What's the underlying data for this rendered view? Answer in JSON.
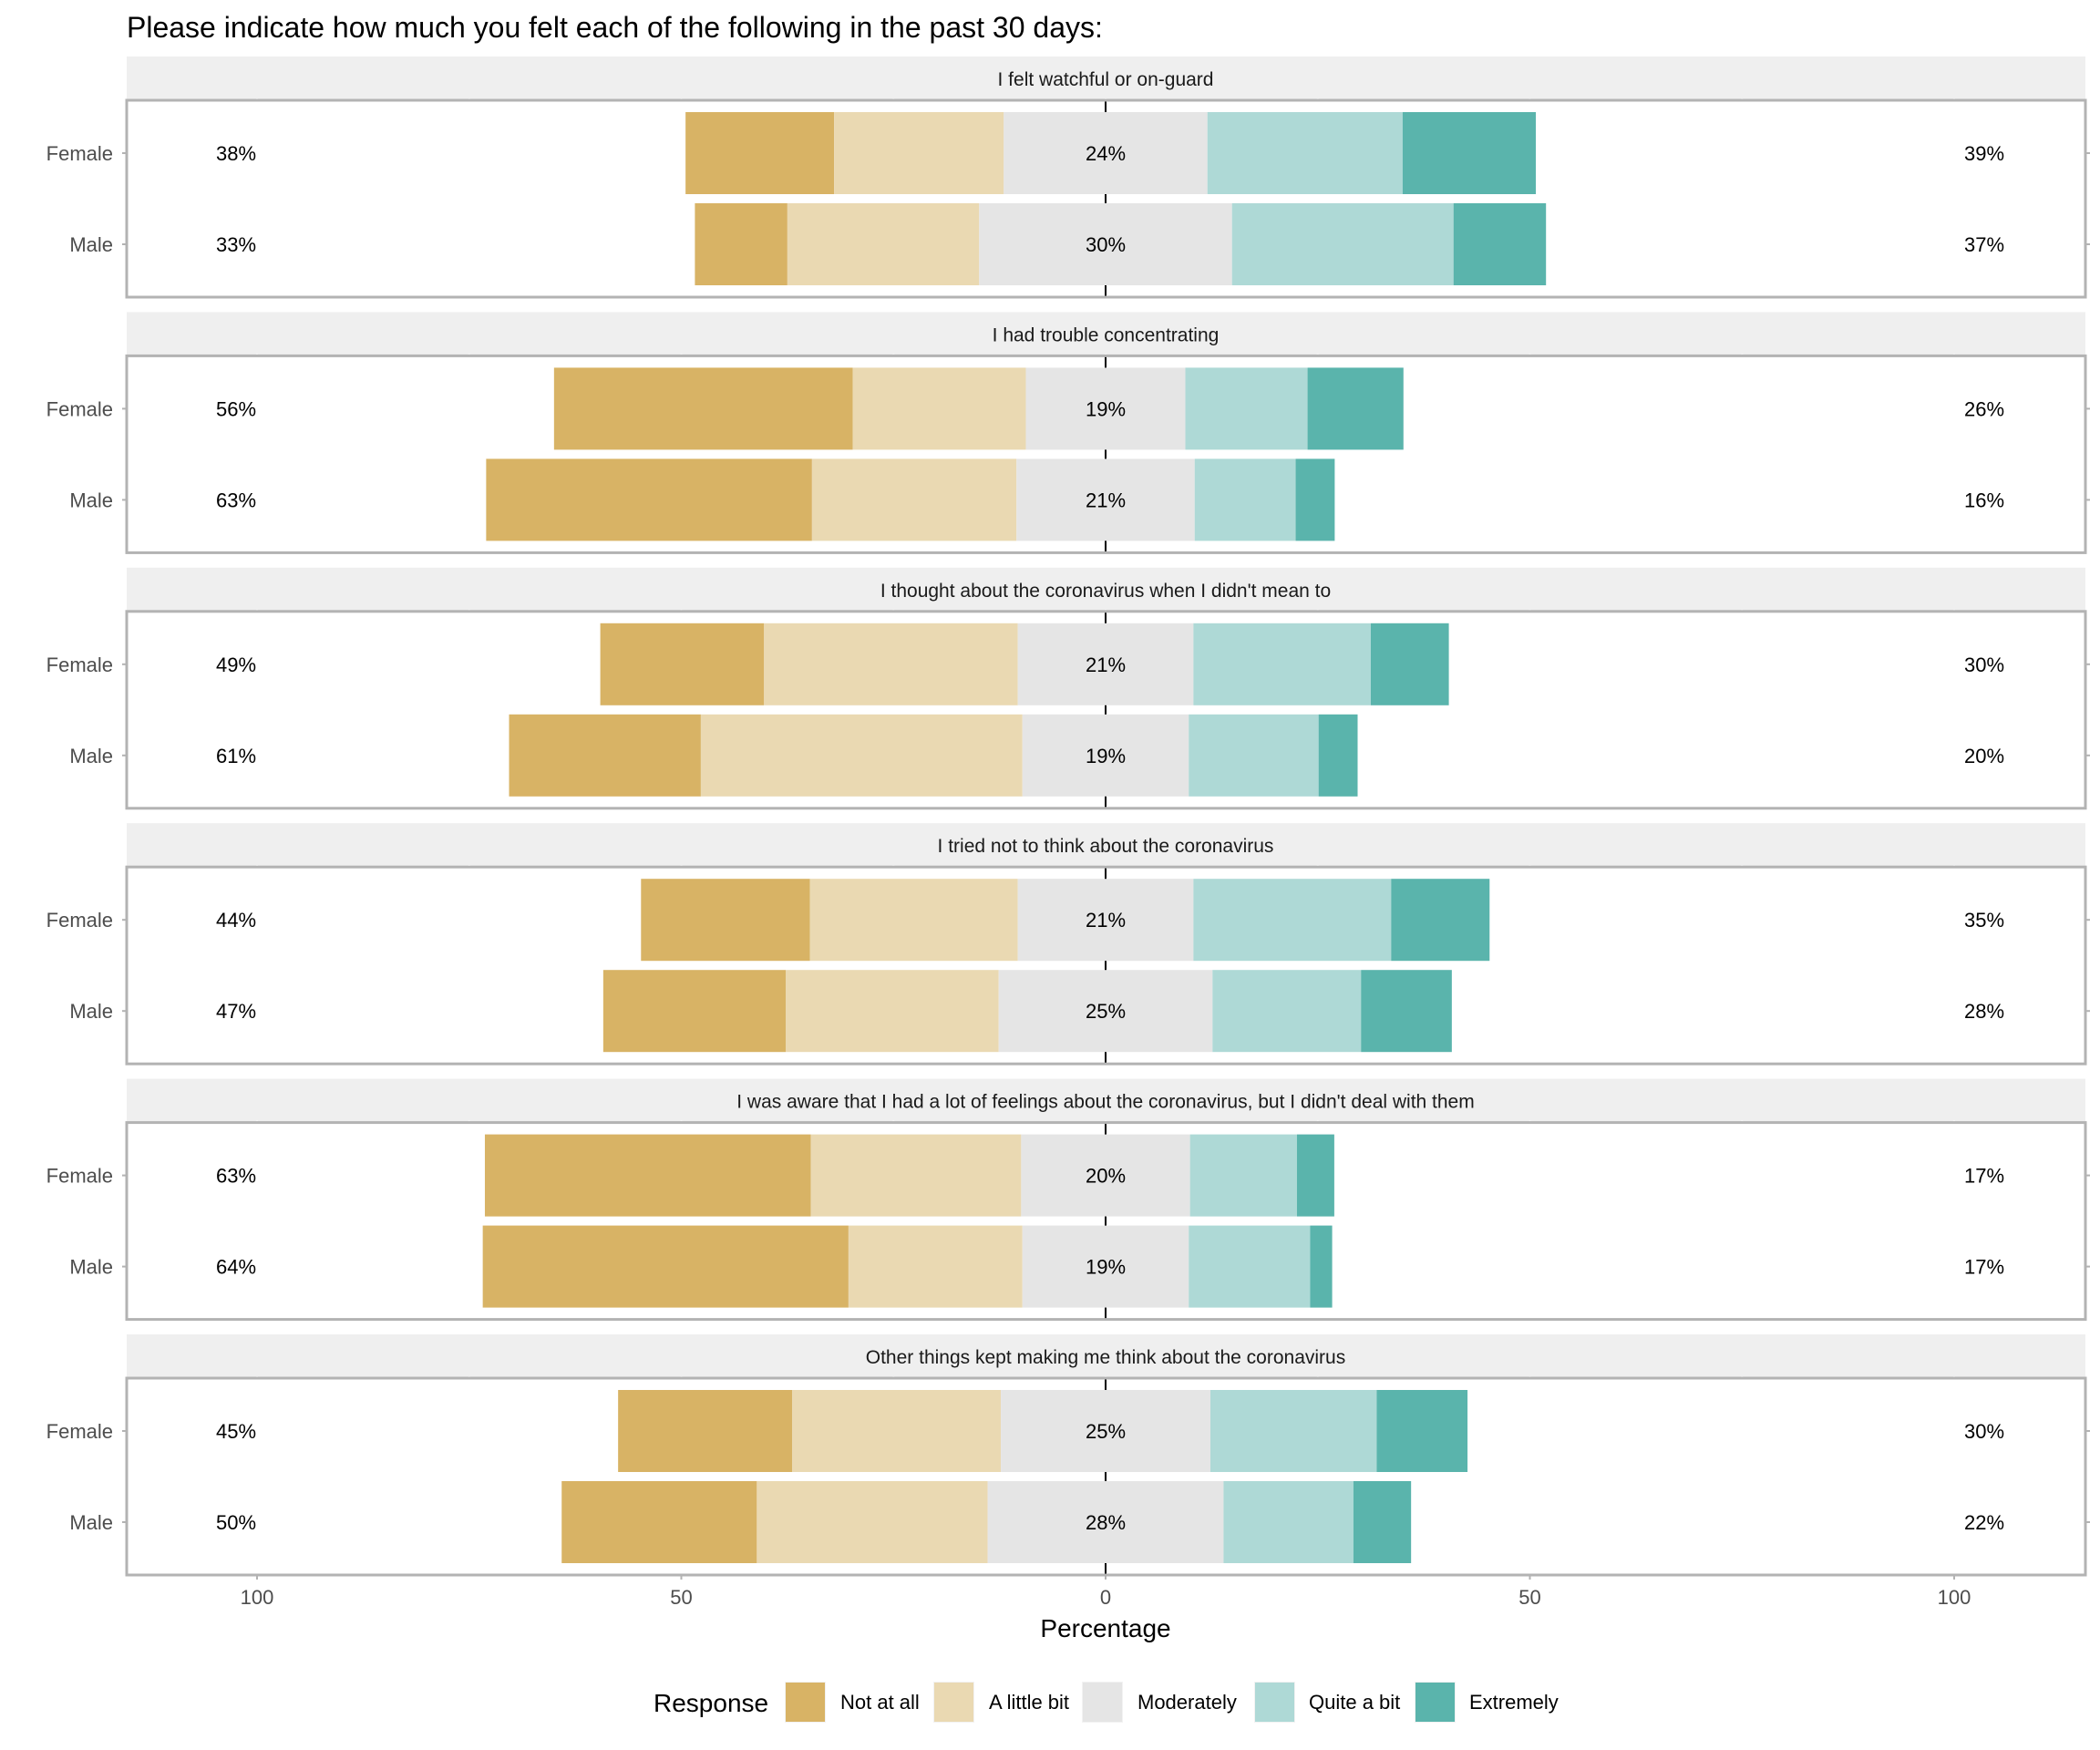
{
  "chart_data": {
    "type": "bar",
    "subtype": "diverging-stacked-horizontal",
    "title": "Please indicate how much you felt each of the following in the past 30 days:",
    "xlabel": "Percentage",
    "ylabel": "",
    "xlim": [
      -100,
      100
    ],
    "x_ticks": [
      -100,
      -50,
      0,
      50,
      100
    ],
    "x_tick_labels": [
      "100",
      "50",
      "0",
      "50",
      "100"
    ],
    "grid": false,
    "legend": {
      "title": "Response",
      "position": "bottom",
      "entries": [
        "Not at all",
        "A little bit",
        "Moderately",
        "Quite a bit",
        "Extremely"
      ]
    },
    "colors": {
      "Not at all": "#D8B365",
      "A little bit": "#EAD9B2",
      "Moderately": "#E5E5E5",
      "Quite a bit": "#AED9D6",
      "Extremely": "#5AB4AC"
    },
    "categories": [
      "Female",
      "Male"
    ],
    "panels": [
      {
        "label": "I felt watchful or on-guard",
        "rows": [
          {
            "group": "Female",
            "values": [
              17.5,
              20.0,
              24.0,
              23.0,
              15.7
            ],
            "low_label": "38%",
            "neutral_label": "24%",
            "high_label": "39%"
          },
          {
            "group": "Male",
            "values": [
              10.9,
              22.6,
              29.8,
              26.1,
              10.9
            ],
            "low_label": "33%",
            "neutral_label": "30%",
            "high_label": "37%"
          }
        ]
      },
      {
        "label": "I had trouble concentrating",
        "rows": [
          {
            "group": "Female",
            "values": [
              35.2,
              20.4,
              18.8,
              14.4,
              11.3
            ],
            "low_label": "56%",
            "neutral_label": "19%",
            "high_label": "26%"
          },
          {
            "group": "Male",
            "values": [
              38.4,
              24.1,
              21.0,
              11.9,
              4.6
            ],
            "low_label": "63%",
            "neutral_label": "21%",
            "high_label": "16%"
          }
        ]
      },
      {
        "label": "I thought about the coronavirus when I didn't mean to",
        "rows": [
          {
            "group": "Female",
            "values": [
              19.3,
              29.9,
              20.7,
              20.9,
              9.2
            ],
            "low_label": "49%",
            "neutral_label": "21%",
            "high_label": "30%"
          },
          {
            "group": "Male",
            "values": [
              22.6,
              37.9,
              19.6,
              15.3,
              4.6
            ],
            "low_label": "61%",
            "neutral_label": "19%",
            "high_label": "20%"
          }
        ]
      },
      {
        "label": "I tried not to think about the coronavirus",
        "rows": [
          {
            "group": "Female",
            "values": [
              19.9,
              24.5,
              20.7,
              23.3,
              11.6
            ],
            "low_label": "44%",
            "neutral_label": "21%",
            "high_label": "35%"
          },
          {
            "group": "Male",
            "values": [
              21.5,
              25.1,
              25.2,
              17.5,
              10.7
            ],
            "low_label": "47%",
            "neutral_label": "25%",
            "high_label": "28%"
          }
        ]
      },
      {
        "label": "I was aware that I had a lot of feelings about the coronavirus, but I didn't deal with them",
        "rows": [
          {
            "group": "Female",
            "values": [
              38.4,
              24.8,
              19.9,
              12.6,
              4.4
            ],
            "low_label": "63%",
            "neutral_label": "20%",
            "high_label": "17%"
          },
          {
            "group": "Male",
            "values": [
              43.1,
              20.5,
              19.6,
              14.3,
              2.6
            ],
            "low_label": "64%",
            "neutral_label": "19%",
            "high_label": "17%"
          }
        ]
      },
      {
        "label": "Other things kept making me think about the coronavirus",
        "rows": [
          {
            "group": "Female",
            "values": [
              20.5,
              24.6,
              24.7,
              19.6,
              10.7
            ],
            "low_label": "45%",
            "neutral_label": "25%",
            "high_label": "30%"
          },
          {
            "group": "Male",
            "values": [
              23.0,
              27.2,
              27.8,
              15.3,
              6.8
            ],
            "low_label": "50%",
            "neutral_label": "28%",
            "high_label": "22%"
          }
        ]
      }
    ]
  }
}
